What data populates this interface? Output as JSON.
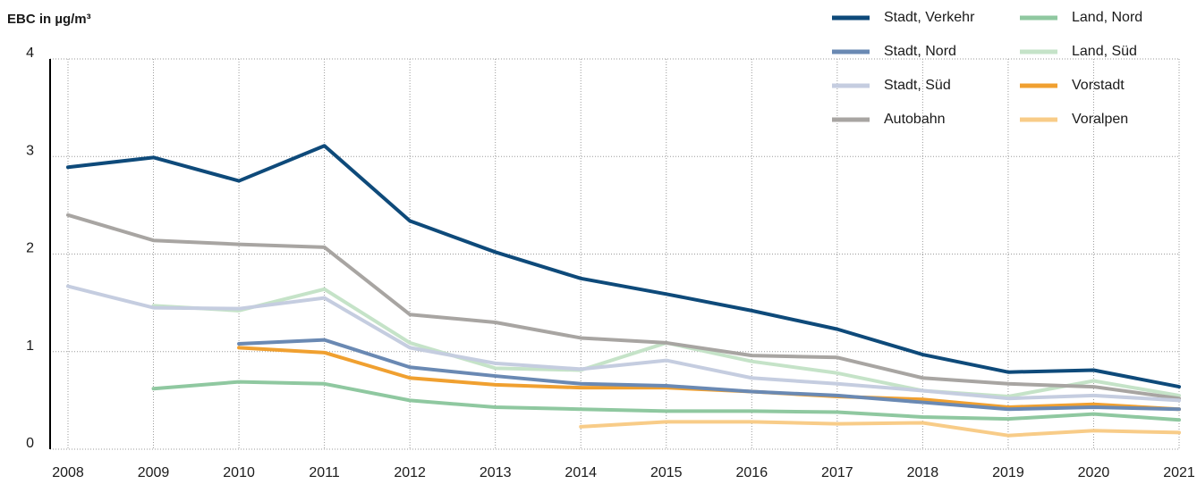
{
  "chart_data": {
    "type": "line",
    "y_label": "EBC in µg/m³",
    "x": [
      2008,
      2009,
      2010,
      2011,
      2012,
      2013,
      2014,
      2015,
      2016,
      2017,
      2018,
      2019,
      2020,
      2021
    ],
    "xlim": [
      2008,
      2021
    ],
    "xticks": [
      2008,
      2009,
      2010,
      2011,
      2012,
      2013,
      2014,
      2015,
      2016,
      2017,
      2018,
      2019,
      2020,
      2021
    ],
    "ylim": [
      0,
      4
    ],
    "yticks": [
      0,
      1,
      2,
      3,
      4
    ],
    "grid": true,
    "legend": "top-right",
    "series": [
      {
        "name": "Stadt, Verkehr",
        "color": "#0e4a7a",
        "values": [
          2.89,
          2.99,
          2.75,
          3.11,
          2.34,
          2.02,
          1.75,
          1.59,
          1.42,
          1.23,
          0.97,
          0.79,
          0.81,
          0.64
        ]
      },
      {
        "name": "Stadt, Nord",
        "color": "#6a89b3",
        "values": [
          null,
          null,
          1.08,
          1.12,
          0.84,
          0.75,
          0.67,
          0.65,
          0.59,
          0.55,
          0.48,
          0.41,
          0.43,
          0.41
        ]
      },
      {
        "name": "Stadt, Süd",
        "color": "#c5cde0",
        "values": [
          1.67,
          1.45,
          1.44,
          1.55,
          1.04,
          0.88,
          0.82,
          0.91,
          0.73,
          0.67,
          0.6,
          0.52,
          0.55,
          0.5
        ]
      },
      {
        "name": "Autobahn",
        "color": "#a8a5a2",
        "values": [
          2.4,
          2.14,
          2.1,
          2.07,
          1.38,
          1.3,
          1.14,
          1.09,
          0.96,
          0.94,
          0.73,
          0.67,
          0.64,
          0.52
        ]
      },
      {
        "name": "Land, Nord",
        "color": "#8fc8a0",
        "values": [
          null,
          0.62,
          0.69,
          0.67,
          0.5,
          0.43,
          0.41,
          0.39,
          0.39,
          0.38,
          0.33,
          0.31,
          0.36,
          0.3
        ]
      },
      {
        "name": "Land, Süd",
        "color": "#c5e3c8",
        "values": [
          null,
          1.47,
          1.42,
          1.64,
          1.09,
          0.83,
          0.81,
          1.09,
          0.9,
          0.78,
          0.6,
          0.54,
          0.7,
          0.55
        ]
      },
      {
        "name": "Vorstadt",
        "color": "#f0a030",
        "values": [
          null,
          null,
          1.04,
          0.99,
          0.73,
          0.66,
          0.63,
          0.63,
          0.59,
          0.54,
          0.51,
          0.43,
          0.46,
          0.41
        ]
      },
      {
        "name": "Voralpen",
        "color": "#f8cc88",
        "values": [
          null,
          null,
          null,
          null,
          null,
          null,
          0.23,
          0.28,
          0.28,
          0.26,
          0.27,
          0.14,
          0.19,
          0.17
        ]
      }
    ]
  }
}
